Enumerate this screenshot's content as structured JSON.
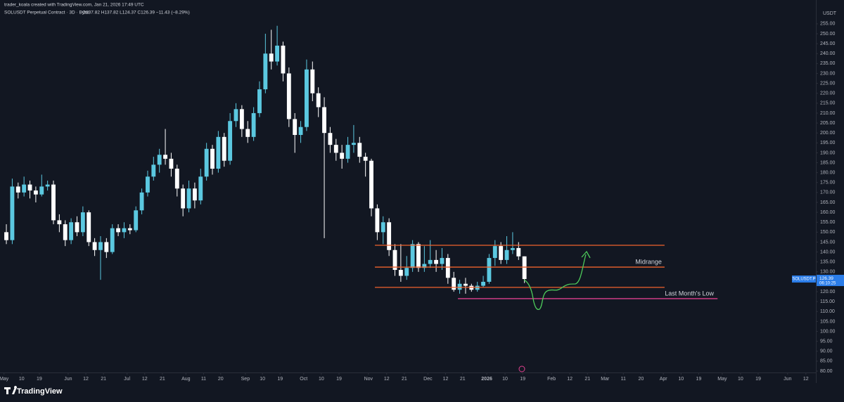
{
  "chart_data": {
    "type": "candlestick",
    "header": {
      "credit": "trader_koala created with TradingView.com, Jan 21, 2026 17:49 UTC",
      "symbol": "SOLUSDT Perpetual Contract · 3D · Bybit",
      "ohlc": "O137.82 H137.82 L124.37 C126.39 −11.43 (−8.29%)"
    },
    "currency": "USDT",
    "brand": "TradingView",
    "up_color": "#5bc8e0",
    "down_color": "#ffffff",
    "open": [
      150,
      146,
      173,
      170,
      174,
      171,
      169,
      173,
      174,
      156,
      154,
      146,
      155,
      150,
      160,
      145,
      141,
      145,
      140,
      152,
      150,
      152,
      151,
      161,
      170,
      178,
      184,
      189,
      187,
      182,
      172,
      162,
      172,
      166,
      178,
      192,
      182,
      198,
      186,
      206,
      212,
      202,
      198,
      210,
      222,
      240,
      236,
      244,
      230,
      207,
      199,
      203,
      232,
      220,
      213,
      200,
      194,
      190,
      187,
      194,
      195,
      188,
      186,
      162,
      150,
      155,
      141,
      131,
      128,
      132,
      144,
      132,
      134,
      136,
      134,
      137,
      127,
      121,
      124,
      123,
      121,
      123,
      125,
      137,
      143,
      136,
      141,
      142,
      137.82
    ],
    "high": [
      154,
      177,
      175,
      178,
      176,
      173,
      179,
      176,
      176,
      159,
      156,
      157,
      158,
      163,
      161,
      147,
      148,
      147,
      154,
      154,
      155,
      154,
      163,
      172,
      181,
      188,
      192,
      202,
      190,
      184,
      174,
      176,
      175,
      182,
      195,
      194,
      201,
      200,
      210,
      215,
      214,
      206,
      213,
      226,
      250,
      252,
      254,
      246,
      233,
      210,
      206,
      237,
      236,
      223,
      218,
      203,
      197,
      194,
      198,
      204,
      198,
      190,
      187,
      164,
      158,
      157,
      144,
      144,
      138,
      146,
      145,
      143,
      146,
      141,
      142,
      139,
      130,
      126,
      127,
      124,
      125,
      128,
      139,
      146,
      145,
      148,
      150,
      145,
      137.82
    ],
    "low": [
      144,
      144,
      167,
      168,
      167,
      165,
      168,
      171,
      154,
      150,
      143,
      144,
      148,
      148,
      143,
      138,
      126,
      137,
      139,
      148,
      147,
      149,
      150,
      159,
      168,
      176,
      180,
      184,
      178,
      168,
      158,
      160,
      162,
      164,
      176,
      179,
      180,
      183,
      184,
      203,
      198,
      195,
      196,
      208,
      220,
      232,
      234,
      226,
      203,
      190,
      195,
      201,
      216,
      208,
      147,
      190,
      186,
      182,
      185,
      190,
      185,
      178,
      158,
      146,
      144,
      138,
      128,
      125,
      126,
      130,
      130,
      130,
      132,
      130,
      131,
      124,
      120,
      119,
      119,
      120,
      120,
      122,
      124,
      133,
      134,
      134,
      139,
      136,
      124.37
    ],
    "close": [
      146,
      173,
      170,
      174,
      171,
      169,
      173,
      174,
      156,
      154,
      146,
      155,
      150,
      160,
      145,
      141,
      145,
      140,
      152,
      150,
      152,
      151,
      161,
      170,
      178,
      184,
      189,
      187,
      182,
      172,
      162,
      172,
      166,
      178,
      192,
      182,
      198,
      186,
      206,
      212,
      202,
      198,
      210,
      222,
      240,
      236,
      244,
      230,
      207,
      199,
      203,
      232,
      220,
      213,
      200,
      194,
      190,
      187,
      194,
      195,
      188,
      186,
      162,
      150,
      155,
      141,
      131,
      128,
      132,
      144,
      132,
      134,
      136,
      134,
      137,
      127,
      121,
      124,
      123,
      121,
      123,
      125,
      137,
      143,
      136,
      141,
      142,
      137.82,
      126.39
    ],
    "price_label": {
      "symbol": "SOLUSDT.P",
      "price": "126.39",
      "countdown": "06:10:25",
      "color": "#2b7de9"
    },
    "levels": [
      {
        "value": 143.4,
        "start": 62.6,
        "end": 111.8,
        "color": "#f0622d"
      },
      {
        "value": 132.4,
        "start": 62.6,
        "end": 111.8,
        "color": "#f0622d",
        "label": "Midrange"
      },
      {
        "value": 122.2,
        "start": 62.6,
        "end": 111.8,
        "color": "#f0622d"
      },
      {
        "value": 116.5,
        "start": 76.7,
        "end": 120.8,
        "color": "#e0408f",
        "label": "Last Month's Low"
      }
    ],
    "xlim": [
      -1.08,
      137.5
    ],
    "ylim": [
      79.3,
      267
    ],
    "xticks": [
      {
        "value": -0.4,
        "label": "May"
      },
      {
        "value": 2.6,
        "label": "10"
      },
      {
        "value": 5.6,
        "label": "19"
      },
      {
        "value": 10.5,
        "label": "Jun"
      },
      {
        "value": 13.5,
        "label": "12"
      },
      {
        "value": 16.5,
        "label": "21"
      },
      {
        "value": 20.5,
        "label": "Jul"
      },
      {
        "value": 23.5,
        "label": "12"
      },
      {
        "value": 26.5,
        "label": "21"
      },
      {
        "value": 30.5,
        "label": "Aug"
      },
      {
        "value": 33.5,
        "label": "11"
      },
      {
        "value": 36.4,
        "label": "20"
      },
      {
        "value": 40.6,
        "label": "Sep"
      },
      {
        "value": 43.5,
        "label": "10"
      },
      {
        "value": 46.5,
        "label": "19"
      },
      {
        "value": 50.5,
        "label": "Oct"
      },
      {
        "value": 53.5,
        "label": "10"
      },
      {
        "value": 56.5,
        "label": "19"
      },
      {
        "value": 61.5,
        "label": "Nov"
      },
      {
        "value": 64.6,
        "label": "12"
      },
      {
        "value": 67.6,
        "label": "21"
      },
      {
        "value": 71.6,
        "label": "Dec"
      },
      {
        "value": 74.6,
        "label": "12"
      },
      {
        "value": 77.5,
        "label": "21"
      },
      {
        "value": 81.6,
        "label": "2026"
      },
      {
        "value": 84.7,
        "label": "10"
      },
      {
        "value": 87.7,
        "label": "19"
      },
      {
        "value": 92.6,
        "label": "Feb"
      },
      {
        "value": 95.7,
        "label": "12"
      },
      {
        "value": 98.7,
        "label": "21"
      },
      {
        "value": 101.7,
        "label": "Mar"
      },
      {
        "value": 104.8,
        "label": "11"
      },
      {
        "value": 107.8,
        "label": "20"
      },
      {
        "value": 111.6,
        "label": "Apr"
      },
      {
        "value": 114.6,
        "label": "10"
      },
      {
        "value": 117.6,
        "label": "19"
      },
      {
        "value": 121.6,
        "label": "May"
      },
      {
        "value": 124.7,
        "label": "10"
      },
      {
        "value": 127.7,
        "label": "19"
      },
      {
        "value": 132.7,
        "label": "Jun"
      },
      {
        "value": 135.8,
        "label": "12"
      }
    ],
    "yticks": [
      {
        "value": 80,
        "label": "80.00"
      },
      {
        "value": 85,
        "label": "85.00"
      },
      {
        "value": 90,
        "label": "90.00"
      },
      {
        "value": 95,
        "label": "95.00"
      },
      {
        "value": 100,
        "label": "100.00"
      },
      {
        "value": 105,
        "label": "105.00"
      },
      {
        "value": 110,
        "label": "110.00"
      },
      {
        "value": 115,
        "label": "115.00"
      },
      {
        "value": 120,
        "label": "120.00"
      },
      {
        "value": 125,
        "label": "125.00"
      },
      {
        "value": 130,
        "label": "130.00"
      },
      {
        "value": 135,
        "label": "135.00"
      },
      {
        "value": 140,
        "label": "140.00"
      },
      {
        "value": 145,
        "label": "145.00"
      },
      {
        "value": 150,
        "label": "150.00"
      },
      {
        "value": 155,
        "label": "155.00"
      },
      {
        "value": 160,
        "label": "160.00"
      },
      {
        "value": 165,
        "label": "165.00"
      },
      {
        "value": 170,
        "label": "170.00"
      },
      {
        "value": 175,
        "label": "175.00"
      },
      {
        "value": 180,
        "label": "180.00"
      },
      {
        "value": 185,
        "label": "185.00"
      },
      {
        "value": 190,
        "label": "190.00"
      },
      {
        "value": 195,
        "label": "195.00"
      },
      {
        "value": 200,
        "label": "200.00"
      },
      {
        "value": 205,
        "label": "205.00"
      },
      {
        "value": 210,
        "label": "210.00"
      },
      {
        "value": 215,
        "label": "215.00"
      },
      {
        "value": 220,
        "label": "220.00"
      },
      {
        "value": 225,
        "label": "225.00"
      },
      {
        "value": 230,
        "label": "230.00"
      },
      {
        "value": 235,
        "label": "235.00"
      },
      {
        "value": 240,
        "label": "240.00"
      },
      {
        "value": 245,
        "label": "245.00"
      },
      {
        "value": 250,
        "label": "250.00"
      },
      {
        "value": 255,
        "label": "255.00"
      }
    ],
    "grid": false
  }
}
